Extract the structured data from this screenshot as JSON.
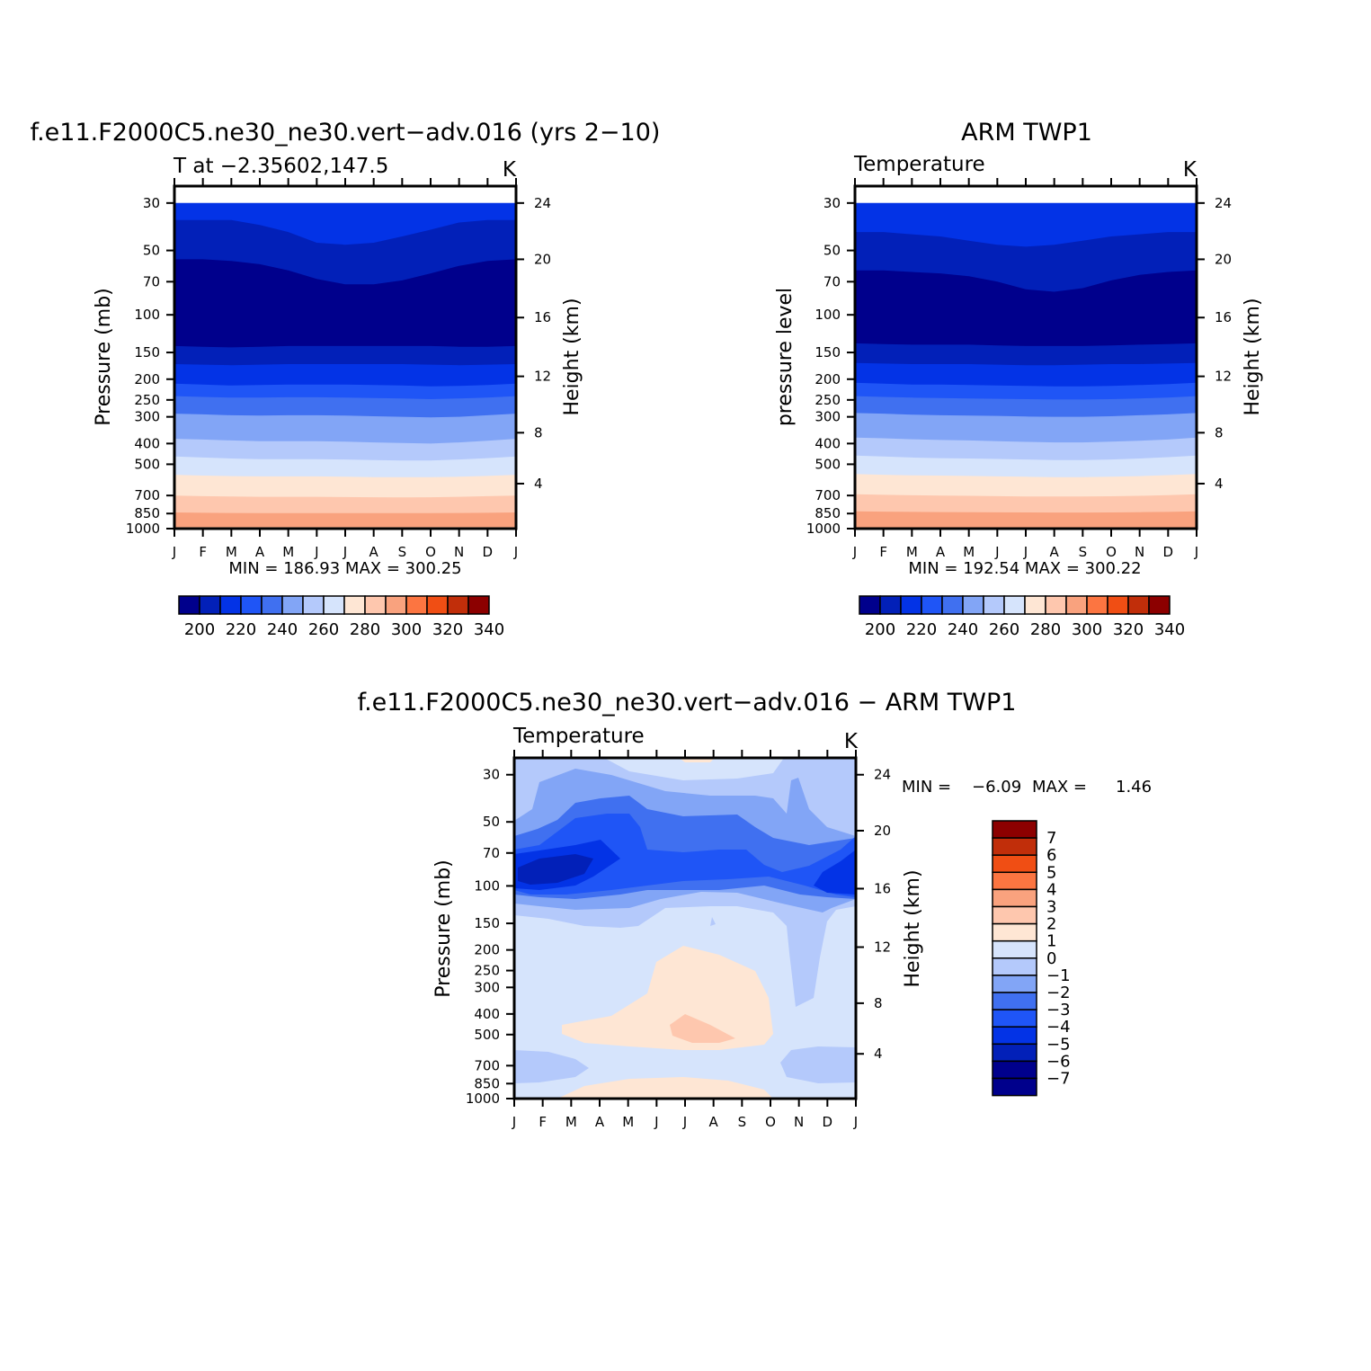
{
  "chart_data": [
    {
      "type": "heatmap",
      "title": "f.e11.F2000C5.ne30_ne30.vert-adv.016 (yrs 2-10)",
      "subtitle_left": "T at -2.35602,147.5",
      "subtitle_right": "K",
      "ylabel": "Pressure (mb)",
      "ylabel_right": "Height (km)",
      "x_ticks": [
        "J",
        "F",
        "M",
        "A",
        "M",
        "J",
        "J",
        "A",
        "S",
        "O",
        "N",
        "D",
        "J"
      ],
      "y_ticks": [
        "30",
        "50",
        "70",
        "100",
        "150",
        "200",
        "250",
        "300",
        "400",
        "500",
        "700",
        "850",
        "1000"
      ],
      "y_ticks_right": [
        "24",
        "20",
        "16",
        "12",
        "8",
        "4"
      ],
      "stats": "MIN = 186.93 MAX = 300.25",
      "colorbar_labels": [
        "200",
        "220",
        "240",
        "260",
        "280",
        "300",
        "320",
        "340"
      ],
      "bands": [
        {
          "color": "#0333e6",
          "top": [
            30,
            30,
            30,
            30,
            30,
            30,
            30,
            30,
            30,
            30,
            30,
            30,
            30
          ]
        },
        {
          "color": "#0220b8",
          "top": [
            36,
            36,
            36,
            38,
            41,
            46,
            47,
            46,
            43,
            40,
            37,
            36,
            36
          ]
        },
        {
          "color": "#00008c",
          "top": [
            55,
            55,
            56,
            58,
            62,
            68,
            72,
            72,
            69,
            64,
            59,
            56,
            55
          ]
        },
        {
          "color": "#0220b8",
          "top": [
            140,
            141,
            142,
            141,
            140,
            140,
            140,
            140,
            140,
            140,
            141,
            141,
            140
          ]
        },
        {
          "color": "#0333e6",
          "top": [
            170,
            171,
            172,
            171,
            170,
            170,
            170,
            170,
            170,
            171,
            172,
            171,
            170
          ]
        },
        {
          "color": "#1f55f6",
          "top": [
            210,
            212,
            214,
            213,
            212,
            212,
            212,
            213,
            214,
            216,
            215,
            213,
            210
          ]
        },
        {
          "color": "#4070f0",
          "top": [
            240,
            242,
            244,
            244,
            243,
            243,
            244,
            245,
            246,
            248,
            246,
            244,
            240
          ]
        },
        {
          "color": "#82a5f6",
          "top": [
            290,
            292,
            295,
            296,
            295,
            295,
            296,
            298,
            300,
            302,
            300,
            295,
            290
          ]
        },
        {
          "color": "#b4c9fb",
          "top": [
            380,
            383,
            387,
            390,
            390,
            390,
            392,
            395,
            398,
            400,
            395,
            388,
            380
          ]
        },
        {
          "color": "#d6e4fc",
          "top": [
            460,
            465,
            470,
            473,
            473,
            473,
            475,
            478,
            480,
            480,
            475,
            468,
            460
          ]
        },
        {
          "color": "#fee6d4",
          "top": [
            560,
            565,
            568,
            570,
            570,
            570,
            572,
            574,
            575,
            575,
            572,
            567,
            560
          ]
        },
        {
          "color": "#fec7ae",
          "top": [
            700,
            705,
            708,
            710,
            710,
            710,
            712,
            713,
            714,
            713,
            710,
            705,
            700
          ]
        },
        {
          "color": "#f9a27e",
          "top": [
            840,
            843,
            845,
            846,
            846,
            846,
            847,
            847,
            847,
            846,
            845,
            843,
            840
          ]
        },
        {
          "color": "#fee6d4",
          "top": [
            985,
            985,
            985,
            985,
            985,
            985,
            985,
            985,
            985,
            985,
            985,
            985,
            985
          ]
        }
      ]
    },
    {
      "type": "heatmap",
      "title": "ARM TWP1",
      "subtitle_left": "Temperature",
      "subtitle_right": "K",
      "ylabel": "pressure level",
      "ylabel_right": "Height (km)",
      "x_ticks": [
        "J",
        "F",
        "M",
        "A",
        "M",
        "J",
        "J",
        "A",
        "S",
        "O",
        "N",
        "D",
        "J"
      ],
      "y_ticks": [
        "30",
        "50",
        "70",
        "100",
        "150",
        "200",
        "250",
        "300",
        "400",
        "500",
        "700",
        "850",
        "1000"
      ],
      "y_ticks_right": [
        "24",
        "20",
        "16",
        "12",
        "8",
        "4"
      ],
      "stats": "MIN = 192.54 MAX = 300.22",
      "colorbar_labels": [
        "200",
        "220",
        "240",
        "260",
        "280",
        "300",
        "320",
        "340"
      ],
      "bands": [
        {
          "color": "#0333e6",
          "top": [
            30,
            30,
            30,
            30,
            30,
            30,
            30,
            30,
            30,
            30,
            30,
            30,
            30
          ]
        },
        {
          "color": "#0220b8",
          "top": [
            41,
            41,
            42,
            43,
            45,
            47,
            48,
            47,
            45,
            43,
            42,
            41,
            41
          ]
        },
        {
          "color": "#00008c",
          "top": [
            62,
            62,
            63,
            64,
            66,
            70,
            76,
            78,
            75,
            69,
            65,
            63,
            62
          ]
        },
        {
          "color": "#0220b8",
          "top": [
            136,
            137,
            138,
            138,
            138,
            139,
            140,
            140,
            140,
            139,
            138,
            137,
            136
          ]
        },
        {
          "color": "#0333e6",
          "top": [
            168,
            169,
            170,
            170,
            170,
            171,
            172,
            172,
            171,
            170,
            170,
            169,
            168
          ]
        },
        {
          "color": "#1f55f6",
          "top": [
            208,
            210,
            212,
            212,
            213,
            214,
            215,
            216,
            216,
            215,
            213,
            211,
            208
          ]
        },
        {
          "color": "#4070f0",
          "top": [
            240,
            242,
            244,
            245,
            246,
            247,
            248,
            249,
            249,
            248,
            246,
            244,
            240
          ]
        },
        {
          "color": "#82a5f6",
          "top": [
            288,
            290,
            293,
            295,
            296,
            297,
            299,
            300,
            300,
            298,
            295,
            292,
            288
          ]
        },
        {
          "color": "#b4c9fb",
          "top": [
            375,
            378,
            382,
            385,
            387,
            390,
            393,
            395,
            395,
            392,
            388,
            383,
            375
          ]
        },
        {
          "color": "#d6e4fc",
          "top": [
            455,
            460,
            465,
            468,
            470,
            472,
            475,
            478,
            478,
            475,
            470,
            463,
            455
          ]
        },
        {
          "color": "#fee6d4",
          "top": [
            555,
            560,
            563,
            565,
            567,
            570,
            572,
            575,
            575,
            572,
            568,
            562,
            555
          ]
        },
        {
          "color": "#fec7ae",
          "top": [
            690,
            695,
            698,
            700,
            702,
            705,
            707,
            708,
            708,
            706,
            702,
            697,
            690
          ]
        },
        {
          "color": "#f9a27e",
          "top": [
            830,
            833,
            835,
            837,
            838,
            839,
            840,
            841,
            841,
            840,
            838,
            835,
            830
          ]
        }
      ]
    },
    {
      "type": "heatmap",
      "title": "f.e11.F2000C5.ne30_ne30.vert-adv.016 - ARM TWP1",
      "subtitle_left": "Temperature",
      "subtitle_right": "K",
      "ylabel": "Pressure (mb)",
      "ylabel_right": "Height (km)",
      "x_ticks": [
        "J",
        "F",
        "M",
        "A",
        "M",
        "J",
        "J",
        "A",
        "S",
        "O",
        "N",
        "D",
        "J"
      ],
      "y_ticks": [
        "30",
        "50",
        "70",
        "100",
        "150",
        "200",
        "250",
        "300",
        "400",
        "500",
        "700",
        "850",
        "1000"
      ],
      "y_ticks_right": [
        "24",
        "20",
        "16",
        "12",
        "8",
        "4"
      ],
      "stats_min_label": "MIN =",
      "stats_min": "-6.09",
      "stats_max_label": "MAX =",
      "stats_max": "1.46",
      "colorbar_labels": [
        "7",
        "6",
        "5",
        "4",
        "3",
        "2",
        "1",
        "0",
        "-1",
        "-2",
        "-3",
        "-4",
        "-5",
        "-6",
        "-7"
      ],
      "background": "#d6e4fc"
    }
  ]
}
